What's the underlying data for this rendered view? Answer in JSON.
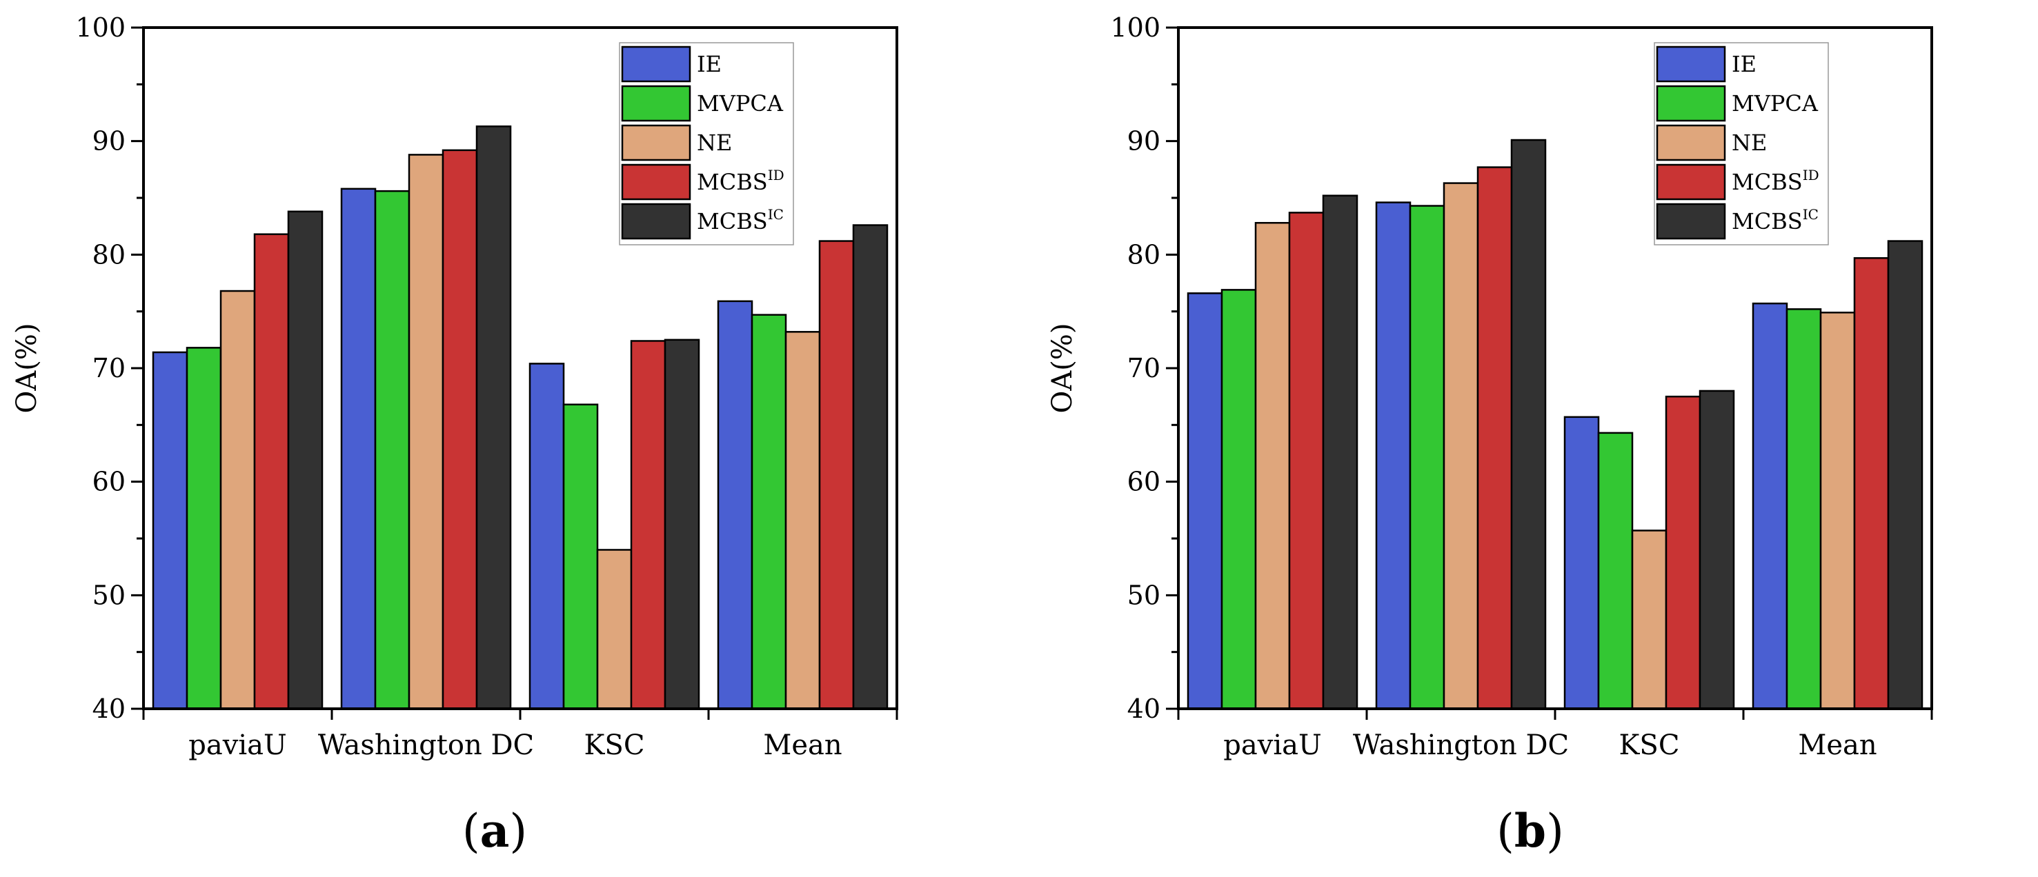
{
  "colors": {
    "IE": "#4a5fd2",
    "MVPCA": "#33c733",
    "NE": "#dfa67c",
    "MCBS_ID": "#c93434",
    "MCBS_IC": "#323232",
    "axis": "#000000"
  },
  "legend": [
    {
      "key": "IE",
      "label": "IE",
      "sup": ""
    },
    {
      "key": "MVPCA",
      "label": "MVPCA",
      "sup": ""
    },
    {
      "key": "NE",
      "label": "NE",
      "sup": ""
    },
    {
      "key": "MCBS_ID",
      "label": "MCBS",
      "sup": "ID"
    },
    {
      "key": "MCBS_IC",
      "label": "MCBS",
      "sup": "IC"
    }
  ],
  "chart_data": [
    {
      "type": "bar",
      "panel": "a",
      "caption": {
        "open": "(",
        "letter": "a",
        "close": ")"
      },
      "categories": [
        "paviaU",
        "Washington DC",
        "KSC",
        "Mean"
      ],
      "ylabel": "OA(%)",
      "xlabel": "",
      "ylim": [
        40,
        100
      ],
      "yticks": [
        "40",
        "50",
        "60",
        "70",
        "80",
        "90",
        "100"
      ],
      "legend_position": "top-right",
      "series": [
        {
          "name": "IE",
          "key": "IE",
          "values": [
            71.4,
            85.8,
            70.4,
            75.9
          ]
        },
        {
          "name": "MVPCA",
          "key": "MVPCA",
          "values": [
            71.8,
            85.6,
            66.8,
            74.7
          ]
        },
        {
          "name": "NE",
          "key": "NE",
          "values": [
            76.8,
            88.8,
            54.0,
            73.2
          ]
        },
        {
          "name": "MCBS^ID",
          "key": "MCBS_ID",
          "values": [
            81.8,
            89.2,
            72.4,
            81.2
          ]
        },
        {
          "name": "MCBS^IC",
          "key": "MCBS_IC",
          "values": [
            83.8,
            91.3,
            72.5,
            82.6
          ]
        }
      ]
    },
    {
      "type": "bar",
      "panel": "b",
      "caption": {
        "open": "(",
        "letter": "b",
        "close": ")"
      },
      "categories": [
        "paviaU",
        "Washington DC",
        "KSC",
        "Mean"
      ],
      "ylabel": "OA(%)",
      "xlabel": "",
      "ylim": [
        40,
        100
      ],
      "yticks": [
        "40",
        "50",
        "60",
        "70",
        "80",
        "90",
        "100"
      ],
      "legend_position": "top-right",
      "series": [
        {
          "name": "IE",
          "key": "IE",
          "values": [
            76.6,
            84.6,
            65.7,
            75.7
          ]
        },
        {
          "name": "MVPCA",
          "key": "MVPCA",
          "values": [
            76.9,
            84.3,
            64.3,
            75.2
          ]
        },
        {
          "name": "NE",
          "key": "NE",
          "values": [
            82.8,
            86.3,
            55.7,
            74.9
          ]
        },
        {
          "name": "MCBS^ID",
          "key": "MCBS_ID",
          "values": [
            83.7,
            87.7,
            67.5,
            79.7
          ]
        },
        {
          "name": "MCBS^IC",
          "key": "MCBS_IC",
          "values": [
            85.2,
            90.1,
            68.0,
            81.2
          ]
        }
      ]
    }
  ]
}
